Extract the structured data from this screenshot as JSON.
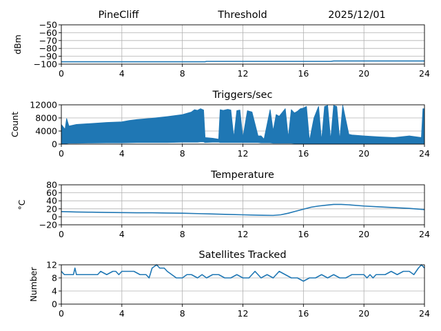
{
  "header": {
    "station": "PineCliff",
    "date": "2025/12/01"
  },
  "chart_data": [
    {
      "type": "line",
      "title": "Threshold",
      "ylabel": "dBm",
      "xlim": [
        0,
        24
      ],
      "ylim": [
        -100,
        -50
      ],
      "xticks": [
        0,
        4,
        8,
        12,
        16,
        20,
        24
      ],
      "yticks": [
        -50,
        -60,
        -70,
        -80,
        -90,
        -100
      ],
      "grid": true,
      "series": [
        {
          "color": "#1f77b4",
          "x": [
            0,
            4,
            8,
            9.5,
            9.6,
            12,
            16,
            17.8,
            18,
            20,
            24
          ],
          "y": [
            -97,
            -97,
            -97,
            -97,
            -96.5,
            -96.5,
            -96.5,
            -96.5,
            -96,
            -96,
            -96
          ]
        }
      ]
    },
    {
      "type": "area",
      "title": "Triggers/sec",
      "ylabel": "Count",
      "xlim": [
        0,
        24
      ],
      "ylim": [
        0,
        12000
      ],
      "xticks": [
        0,
        4,
        8,
        12,
        16,
        20,
        24
      ],
      "yticks": [
        0,
        4000,
        8000,
        12000
      ],
      "grid": true,
      "series": [
        {
          "color": "#1f77b4",
          "x": [
            0,
            0.25,
            0.35,
            0.5,
            1,
            2,
            3,
            4,
            4.5,
            5,
            6,
            7,
            8,
            8.6,
            8.8,
            9.0,
            9.2,
            9.4,
            9.5,
            10,
            10.4,
            10.5,
            10.7,
            11.0,
            11.2,
            11.4,
            11.6,
            11.8,
            12.0,
            12.3,
            12.6,
            13.0,
            13.2,
            13.4,
            13.8,
            14.0,
            14.2,
            14.4,
            14.8,
            15.0,
            15.2,
            15.4,
            15.6,
            15.8,
            16.0,
            16.2,
            16.4,
            16.7,
            17.0,
            17.2,
            17.4,
            17.6,
            17.8,
            18.0,
            18.2,
            18.4,
            18.6,
            19.0,
            19.2,
            20,
            21,
            22,
            23,
            23.8,
            23.9,
            24
          ],
          "y": [
            6000,
            4500,
            7800,
            5500,
            6000,
            6300,
            6600,
            6800,
            7200,
            7500,
            7900,
            8400,
            9000,
            9800,
            10500,
            10300,
            10800,
            10400,
            2000,
            1800,
            1500,
            10500,
            10300,
            10600,
            10400,
            2000,
            10200,
            10400,
            2000,
            10200,
            9800,
            2500,
            2500,
            1500,
            10500,
            4000,
            9000,
            8500,
            10800,
            2000,
            10500,
            9500,
            10000,
            10800,
            11000,
            11500,
            1000,
            8000,
            11500,
            1000,
            11500,
            11800,
            1200,
            11800,
            11500,
            1200,
            11800,
            3000,
            2800,
            2500,
            2200,
            2000,
            2500,
            2000,
            10800,
            10800
          ],
          "floor": [
            200,
            150,
            200,
            300,
            300,
            350,
            400,
            400,
            450,
            500,
            500,
            500,
            600,
            600,
            600,
            600,
            700,
            700,
            500,
            600,
            600,
            500,
            500,
            500,
            500,
            500,
            500,
            500,
            500,
            500,
            500,
            500,
            400,
            400,
            400,
            300,
            300,
            300,
            300,
            300,
            300,
            200,
            200,
            200,
            200,
            150,
            150,
            150,
            150,
            150,
            150,
            150,
            150,
            150,
            150,
            150,
            150,
            150,
            150,
            200,
            200,
            200,
            200,
            200,
            200,
            200
          ]
        }
      ]
    },
    {
      "type": "line",
      "title": "Temperature",
      "ylabel": "°C",
      "xlim": [
        0,
        24
      ],
      "ylim": [
        -20,
        80
      ],
      "xticks": [
        0,
        4,
        8,
        12,
        16,
        20,
        24
      ],
      "yticks": [
        -20,
        0,
        20,
        40,
        60,
        80
      ],
      "grid": true,
      "series": [
        {
          "color": "#1f77b4",
          "x": [
            0,
            1,
            2,
            3,
            4,
            5,
            6,
            7,
            8,
            9,
            10,
            11,
            12,
            13,
            14,
            14.5,
            15,
            15.5,
            16,
            16.5,
            17,
            17.5,
            18,
            18.5,
            19,
            20,
            21,
            22,
            23,
            24
          ],
          "y": [
            13,
            12,
            11.5,
            11,
            10.5,
            10,
            10,
            9.5,
            9,
            8,
            7,
            6,
            5,
            4,
            3.5,
            5,
            9,
            14,
            19,
            24,
            27,
            29,
            31,
            31,
            30,
            27,
            25,
            23,
            21,
            18
          ]
        }
      ]
    },
    {
      "type": "line",
      "title": "Satellites Tracked",
      "ylabel": "Number",
      "xlim": [
        0,
        24
      ],
      "ylim": [
        0,
        12
      ],
      "xticks": [
        0,
        4,
        8,
        12,
        16,
        20,
        24
      ],
      "yticks": [
        0,
        4,
        8,
        12
      ],
      "grid": true,
      "series": [
        {
          "color": "#1f77b4",
          "x": [
            0,
            0.2,
            0.4,
            0.8,
            0.9,
            1.0,
            1.3,
            1.6,
            2.0,
            2.4,
            2.6,
            3.0,
            3.4,
            3.6,
            3.8,
            4.0,
            4.4,
            4.8,
            5.2,
            5.6,
            5.8,
            6.0,
            6.3,
            6.5,
            6.8,
            7.0,
            7.3,
            7.6,
            8.0,
            8.3,
            8.6,
            9.0,
            9.3,
            9.6,
            10.0,
            10.4,
            10.8,
            11.2,
            11.6,
            12.0,
            12.4,
            12.8,
            13.2,
            13.6,
            14.0,
            14.4,
            14.8,
            15.2,
            15.6,
            16.0,
            16.4,
            16.8,
            17.2,
            17.6,
            18.0,
            18.4,
            18.8,
            19.2,
            19.6,
            20.0,
            20.2,
            20.4,
            20.6,
            20.8,
            21.0,
            21.4,
            21.8,
            22.2,
            22.6,
            23.0,
            23.3,
            23.6,
            23.8,
            24.0
          ],
          "y": [
            10,
            9,
            9,
            9,
            11,
            9,
            9,
            9,
            9,
            9,
            10,
            9,
            10,
            10,
            9,
            10,
            10,
            10,
            9,
            9,
            8,
            11,
            12,
            11,
            11,
            10,
            9,
            8,
            8,
            9,
            9,
            8,
            9,
            8,
            9,
            9,
            8,
            8,
            9,
            8,
            8,
            10,
            8,
            9,
            8,
            10,
            9,
            8,
            8,
            7,
            8,
            8,
            9,
            8,
            9,
            8,
            8,
            9,
            9,
            9,
            8,
            9,
            8,
            9,
            9,
            9,
            10,
            9,
            10,
            10,
            9,
            11,
            12,
            11
          ]
        }
      ]
    }
  ]
}
